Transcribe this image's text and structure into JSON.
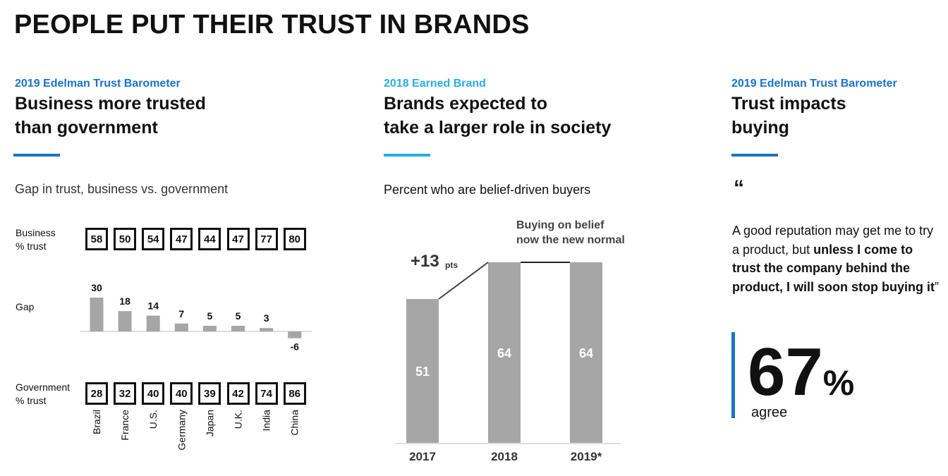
{
  "page_title": "PEOPLE PUT THEIR TRUST IN BRANDS",
  "columns": [
    {
      "kicker": "2019 Edelman Trust Barometer",
      "title_line1": "Business more trusted",
      "title_line2": "than government",
      "subtitle": "Gap in trust, business vs. government"
    },
    {
      "kicker": "2018 Earned Brand",
      "title_line1": "Brands expected to",
      "title_line2": "take a larger role in society",
      "subtitle": "Percent who are belief-driven buyers"
    },
    {
      "kicker": "2019 Edelman Trust Barometer",
      "title_line1": "Trust impacts",
      "title_line2": "buying"
    }
  ],
  "gap_chart": {
    "business_label_line1": "Business",
    "business_label_line2": "% trust",
    "gap_label": "Gap",
    "government_label_line1": "Government",
    "government_label_line2": "% trust"
  },
  "belief_chart": {
    "change_label": "+13",
    "change_unit": "pts",
    "annotation_line1": "Buying on belief",
    "annotation_line2": "now the new normal"
  },
  "quote": {
    "mark": "“",
    "text_plain": "A good reputation may get me to try a product, but ",
    "text_bold": "unless I come to trust the company behind the product, I will soon stop buying it",
    "close_mark": "”",
    "stat_value": "67",
    "stat_unit": "%",
    "stat_caption": "agree",
    "accent_color": "#1a73c7"
  },
  "chart_data": [
    {
      "type": "bar",
      "categories": [
        "Brazil",
        "France",
        "U.S.",
        "Germany",
        "Japan",
        "U.K.",
        "India",
        "China"
      ],
      "series": [
        {
          "name": "Business % trust",
          "values": [
            58,
            50,
            54,
            47,
            44,
            47,
            77,
            80
          ]
        },
        {
          "name": "Gap",
          "values": [
            30,
            18,
            14,
            7,
            5,
            5,
            3,
            -6
          ]
        },
        {
          "name": "Government % trust",
          "values": [
            28,
            32,
            40,
            40,
            39,
            42,
            74,
            86
          ]
        }
      ],
      "bar_color": "#a6a6a6"
    },
    {
      "type": "bar",
      "categories": [
        "2017",
        "2018",
        "2019*"
      ],
      "values": [
        51,
        64,
        64
      ],
      "bar_color": "#a6a6a6"
    }
  ]
}
